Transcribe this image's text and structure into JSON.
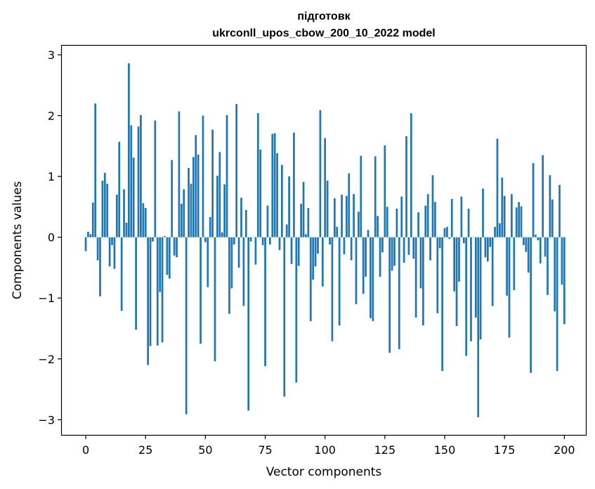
{
  "chart_data": {
    "type": "bar",
    "title_line1": "підготовк",
    "title_line2": "ukrconll_upos_cbow_200_10_2022 model",
    "xlabel": "Vector components",
    "ylabel": "Components values",
    "xlim": [
      -10,
      209
    ],
    "ylim": [
      -3.25,
      3.15
    ],
    "xticks": [
      0,
      25,
      50,
      75,
      100,
      125,
      150,
      175,
      200
    ],
    "yticks": [
      -3,
      -2,
      -1,
      0,
      1,
      2,
      3
    ],
    "ytick_labels": [
      "−3",
      "−2",
      "−1",
      "0",
      "1",
      "2",
      "3"
    ],
    "grid": false,
    "bar_color": "#1f77b4",
    "values": [
      -0.23,
      0.09,
      0.05,
      0.57,
      2.2,
      -0.38,
      -0.97,
      0.93,
      1.06,
      0.88,
      -0.48,
      -0.13,
      -0.52,
      0.7,
      1.57,
      -1.21,
      0.79,
      0.24,
      2.86,
      1.84,
      1.31,
      -1.52,
      1.82,
      2.01,
      0.56,
      0.48,
      -2.1,
      -1.79,
      -0.07,
      1.92,
      -1.78,
      -0.9,
      -1.73,
      0.02,
      -0.62,
      -0.68,
      1.27,
      -0.3,
      -0.33,
      2.07,
      0.55,
      0.79,
      -2.91,
      1.14,
      0.88,
      1.32,
      1.68,
      1.36,
      -1.75,
      2.0,
      -0.08,
      -0.82,
      0.33,
      1.77,
      -2.04,
      1.01,
      1.4,
      0.08,
      0.87,
      2.01,
      -1.26,
      -0.84,
      -0.12,
      2.19,
      -0.5,
      0.65,
      -1.13,
      0.45,
      -2.85,
      -0.07,
      0.0,
      -0.45,
      2.04,
      1.44,
      -0.13,
      -2.12,
      0.52,
      -0.12,
      1.7,
      1.71,
      1.38,
      -0.21,
      1.19,
      -2.62,
      0.21,
      1.0,
      -0.44,
      1.72,
      -2.39,
      -0.47,
      0.55,
      0.91,
      0.05,
      0.48,
      -1.38,
      -0.7,
      -0.48,
      -0.27,
      2.09,
      -0.81,
      1.63,
      0.93,
      -0.12,
      -1.71,
      0.64,
      0.17,
      -1.45,
      0.7,
      -0.28,
      0.68,
      1.05,
      -0.38,
      0.71,
      -1.1,
      0.42,
      1.34,
      -0.93,
      -0.65,
      0.12,
      -1.33,
      -1.38,
      1.33,
      0.35,
      -0.65,
      -0.25,
      1.51,
      0.5,
      -1.9,
      -0.55,
      -0.47,
      0.47,
      -1.84,
      0.67,
      -0.42,
      1.66,
      -0.29,
      2.04,
      -0.35,
      -1.32,
      0.41,
      -0.84,
      -1.45,
      0.52,
      0.71,
      -0.38,
      1.02,
      0.58,
      -1.25,
      -0.18,
      -2.2,
      0.15,
      0.17,
      -0.03,
      0.63,
      -0.89,
      -1.46,
      -0.73,
      0.67,
      -0.1,
      -1.95,
      0.47,
      -1.71,
      0.0,
      -1.32,
      -2.96,
      -1.68,
      0.8,
      -0.33,
      -0.4,
      -0.16,
      -1.13,
      0.17,
      1.62,
      0.23,
      0.98,
      0.68,
      -0.96,
      -1.65,
      0.71,
      -0.87,
      0.49,
      0.58,
      0.51,
      -0.13,
      -0.24,
      -0.58,
      -2.23,
      1.22,
      0.04,
      -0.05,
      -0.43,
      1.35,
      -0.32,
      -0.95,
      1.02,
      0.62,
      -1.22,
      -2.2,
      0.86,
      -0.78,
      -1.43
    ]
  }
}
